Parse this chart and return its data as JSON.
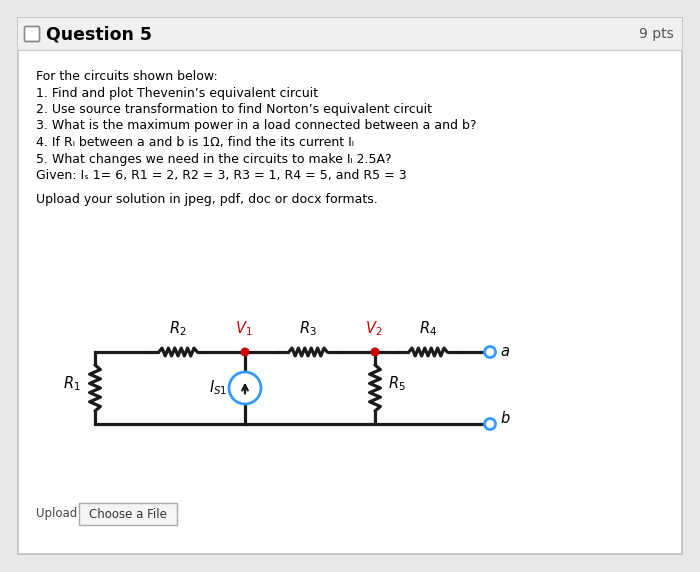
{
  "title": "Question 5",
  "pts": "9 pts",
  "bg_color": "#e8e8e8",
  "card_bg": "#ffffff",
  "text_lines": [
    "For the circuits shown below:",
    "1. Find and plot Thevenin’s equivalent circuit",
    "2. Use source transformation to find Norton’s equivalent circuit",
    "3. What is the maximum power in a load connected between a and b?",
    "4. If Rₗ between a and b is 1Ω, find the its current Iₗ",
    "5. What changes we need in the circuits to make Iₗ 2.5A?",
    "Given: Iₛ 1= 6, R1 = 2, R2 = 3, R3 = 1, R4 = 5, and R5 = 3"
  ],
  "upload_text": "Upload your solution in jpeg, pdf, doc or docx formats.",
  "wire_color": "#1a1a1a",
  "node_color_red": "#cc0000",
  "node_color_blue": "#3399ff",
  "current_source_color": "#3399ff",
  "label_color_red": "#cc0000",
  "font_size_body": 9.0,
  "font_size_title": 12.5,
  "header_bg": "#f0f0f0",
  "card_border": "#c0c0c0"
}
